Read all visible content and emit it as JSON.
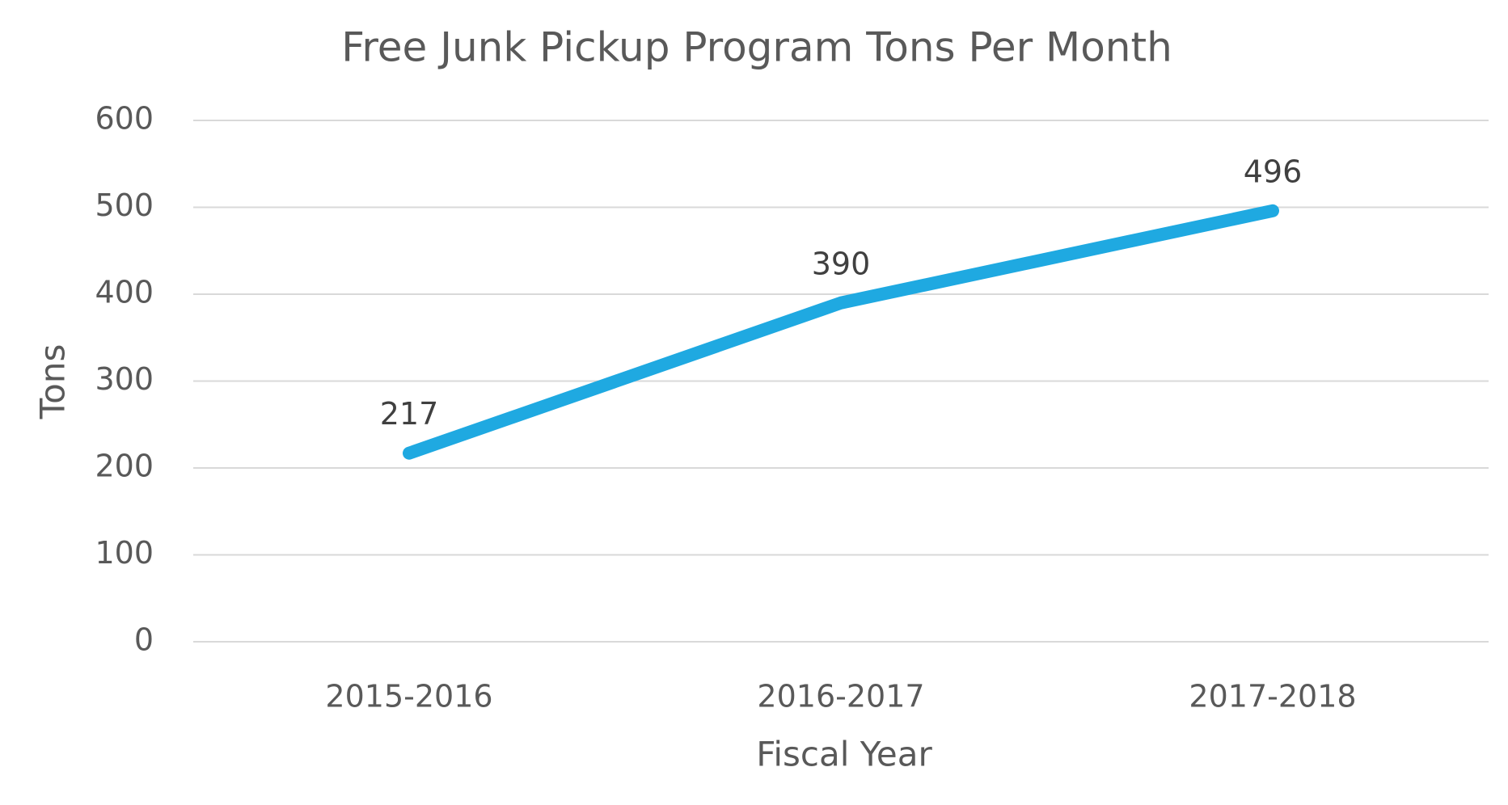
{
  "chart_data": {
    "type": "line",
    "title": "Free Junk Pickup Program Tons Per Month",
    "x_label": "Fiscal Year",
    "y_label": "Tons",
    "categories": [
      "2015-2016",
      "2016-2017",
      "2017-2018"
    ],
    "values": [
      217,
      390,
      496
    ],
    "color": "#1fa9e1",
    "ylim": [
      0,
      600
    ],
    "yticks": [
      0,
      100,
      200,
      300,
      400,
      500,
      600
    ],
    "grid": true
  }
}
